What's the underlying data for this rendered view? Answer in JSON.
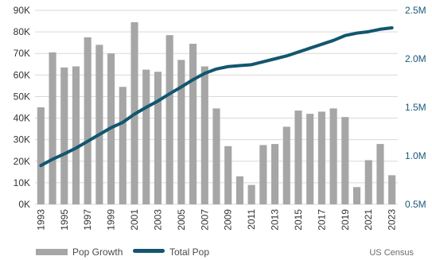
{
  "chart_data": {
    "type": "bar",
    "combo_with": "line",
    "categories": [
      "1993",
      "1994",
      "1995",
      "1996",
      "1997",
      "1998",
      "1999",
      "2000",
      "2001",
      "2002",
      "2003",
      "2004",
      "2005",
      "2006",
      "2007",
      "2008",
      "2009",
      "2010",
      "2011",
      "2012",
      "2013",
      "2014",
      "2015",
      "2016",
      "2017",
      "2018",
      "2019",
      "2020",
      "2021",
      "2022",
      "2023"
    ],
    "x_tick_labels": [
      "1993",
      "1995",
      "1997",
      "1999",
      "2001",
      "2003",
      "2005",
      "2007",
      "2009",
      "2011",
      "2013",
      "2015",
      "2017",
      "2019",
      "2021",
      "2023"
    ],
    "series": [
      {
        "name": "Pop Growth",
        "type": "bar",
        "axis": "left",
        "color": "#a6a6a6",
        "values": [
          45000,
          70500,
          63500,
          64000,
          77500,
          74000,
          70000,
          54500,
          84500,
          62500,
          61500,
          78500,
          67000,
          74500,
          64000,
          44500,
          27000,
          13000,
          9000,
          27500,
          28000,
          36000,
          43500,
          42000,
          43000,
          44500,
          40500,
          8000,
          20500,
          28000,
          13500
        ]
      },
      {
        "name": "Total Pop",
        "type": "line",
        "axis": "right",
        "color": "#12566f",
        "values": [
          900000,
          965000,
          1020000,
          1080000,
          1150000,
          1220000,
          1290000,
          1345000,
          1430000,
          1500000,
          1565000,
          1640000,
          1710000,
          1785000,
          1850000,
          1895000,
          1920000,
          1930000,
          1940000,
          1970000,
          2000000,
          2030000,
          2070000,
          2110000,
          2150000,
          2190000,
          2240000,
          2265000,
          2280000,
          2305000,
          2320000
        ]
      }
    ],
    "left_axis": {
      "ylim": [
        0,
        90000
      ],
      "tick_values": [
        0,
        10000,
        20000,
        30000,
        40000,
        50000,
        60000,
        70000,
        80000,
        90000
      ],
      "tick_labels": [
        "0K",
        "10K",
        "20K",
        "30K",
        "40K",
        "50K",
        "60K",
        "70K",
        "80K",
        "90K"
      ]
    },
    "right_axis": {
      "ylim": [
        500000,
        2500000
      ],
      "tick_values": [
        500000,
        1000000,
        1500000,
        2000000,
        2500000
      ],
      "tick_labels": [
        "0.5M",
        "1.0M",
        "1.5M",
        "2.0M",
        "2.5M"
      ]
    },
    "grid": "horizontal",
    "legend_position": "bottom-left",
    "source": "US Census"
  },
  "colors": {
    "grid": "#d9d9d9",
    "left_tick": "#333333",
    "right_tick": "#1a5a78"
  }
}
